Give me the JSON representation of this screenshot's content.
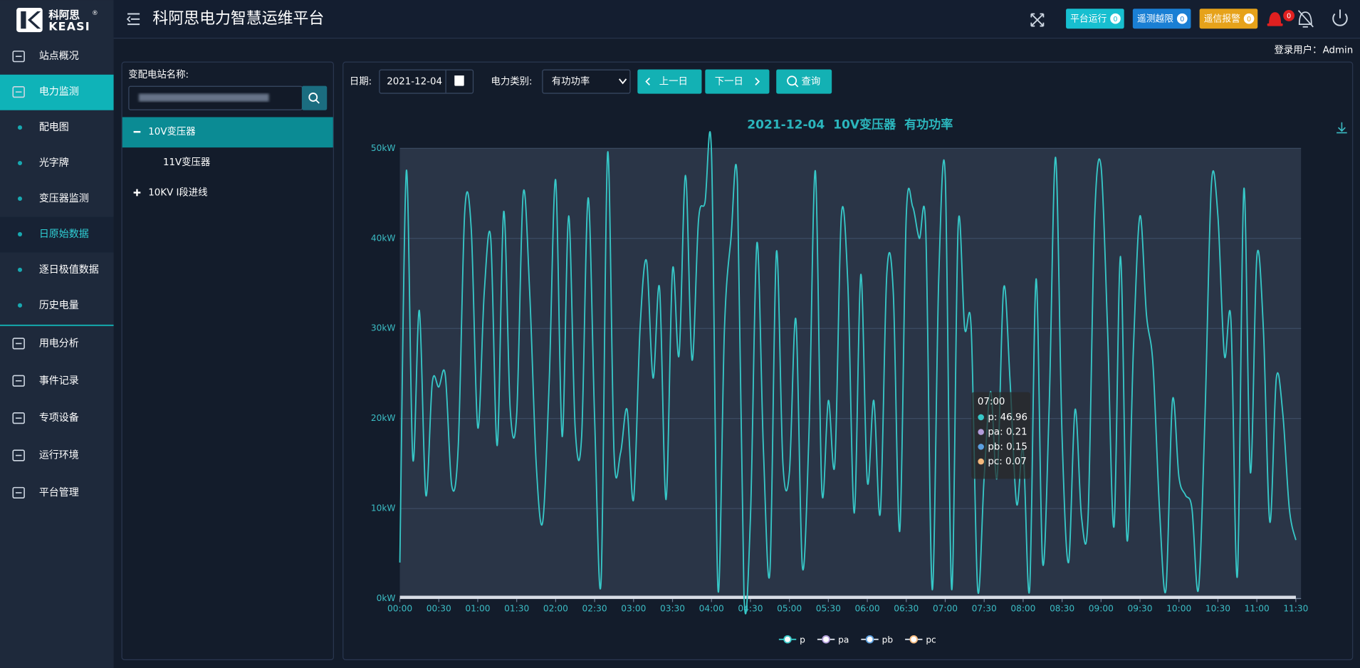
{
  "header": {
    "logo": "科阿思",
    "logo_mark": "®",
    "logo_en": "KEASI",
    "title": "科阿思电力智慧运维平台",
    "badges": [
      {
        "label": "平台运行",
        "count": 0,
        "color": "#17bfd0"
      },
      {
        "label": "遥测越限",
        "count": 0,
        "color": "#1a7fd4"
      },
      {
        "label": "遥信报警",
        "count": 0,
        "color": "#e6a21a"
      }
    ],
    "alarm_count": 0,
    "user_label": "登录用户：",
    "user": "Admin"
  },
  "sidebar": {
    "items": [
      {
        "label": "站点概况"
      },
      {
        "label": "电力监测",
        "active": true,
        "children": [
          {
            "label": "配电图"
          },
          {
            "label": "光字牌"
          },
          {
            "label": "变压器监测"
          },
          {
            "label": "日原始数据",
            "active": true
          },
          {
            "label": "逐日极值数据"
          },
          {
            "label": "历史电量"
          }
        ]
      },
      {
        "label": "用电分析"
      },
      {
        "label": "事件记录"
      },
      {
        "label": "专项设备"
      },
      {
        "label": "运行环境"
      },
      {
        "label": "平台管理"
      }
    ]
  },
  "station_panel": {
    "label": "变配电站名称:",
    "tree": [
      {
        "label": "10V变压器",
        "expanded": true,
        "active": true,
        "children": [
          {
            "label": "11V变压器"
          }
        ]
      },
      {
        "label": "10KV Ⅰ段进线",
        "expanded": false
      }
    ]
  },
  "controls": {
    "date_label": "日期:",
    "date": "2021-12-04",
    "type_label": "电力类别:",
    "type": "有功功率",
    "prev": "上一日",
    "next": "下一日",
    "query": "查询"
  },
  "tooltip": {
    "time": "07:00",
    "items": [
      "p: 46.96",
      "pa: 0.21",
      "pb: 0.15",
      "pc: 0.07"
    ]
  },
  "chart_data": {
    "type": "line",
    "title": "2021-12-04  10V变压器  有功功率",
    "categories": [
      "00:00",
      "00:05",
      "00:10",
      "00:15",
      "00:20",
      "00:25",
      "00:30",
      "00:35",
      "00:40",
      "00:45",
      "00:50",
      "00:55",
      "01:00",
      "01:05",
      "01:10",
      "01:15",
      "01:20",
      "01:25",
      "01:30",
      "01:35",
      "01:40",
      "01:45",
      "01:50",
      "01:55",
      "02:00",
      "02:05",
      "02:10",
      "02:15",
      "02:20",
      "02:25",
      "02:30",
      "02:35",
      "02:40",
      "02:45",
      "02:50",
      "02:55",
      "03:00",
      "03:05",
      "03:10",
      "03:15",
      "03:20",
      "03:25",
      "03:30",
      "03:35",
      "03:40",
      "03:45",
      "03:50",
      "03:55",
      "04:00",
      "04:05",
      "04:10",
      "04:15",
      "04:20",
      "04:25",
      "04:30",
      "04:35",
      "04:40",
      "04:45",
      "04:50",
      "04:55",
      "05:00",
      "05:05",
      "05:10",
      "05:15",
      "05:20",
      "05:25",
      "05:30",
      "05:35",
      "05:40",
      "05:45",
      "05:50",
      "05:55",
      "06:00",
      "06:05",
      "06:10",
      "06:15",
      "06:20",
      "06:25",
      "06:30",
      "06:35",
      "06:40",
      "06:45",
      "06:50",
      "06:55",
      "07:00",
      "07:05",
      "07:10",
      "07:15",
      "07:20",
      "07:25",
      "07:30",
      "07:35",
      "07:40",
      "07:45",
      "07:50",
      "07:55",
      "08:00",
      "08:05",
      "08:10",
      "08:15",
      "08:20",
      "08:25",
      "08:30",
      "08:35",
      "08:40",
      "08:45",
      "08:50",
      "08:55",
      "09:00",
      "09:05",
      "09:10",
      "09:15",
      "09:20",
      "09:25",
      "09:30",
      "09:35",
      "09:40",
      "09:45",
      "09:50",
      "09:55",
      "10:00",
      "10:05",
      "10:10",
      "10:15",
      "10:20",
      "10:25",
      "10:30",
      "10:35",
      "10:40",
      "10:45",
      "10:50",
      "10:55",
      "11:00",
      "11:05",
      "11:10",
      "11:15",
      "11:20",
      "11:25",
      "11:30"
    ],
    "series": [
      {
        "name": "p",
        "color": "#37c8c8",
        "values": [
          4,
          47.5,
          15.5,
          32,
          11.5,
          24,
          23.5,
          24.8,
          12.5,
          17,
          43,
          41,
          19,
          34,
          40,
          17,
          43,
          21,
          20.5,
          45,
          34,
          15,
          8.5,
          24,
          46.5,
          18,
          42.5,
          19,
          18,
          44.5,
          20,
          2,
          49.5,
          16,
          16.2,
          21,
          11,
          30,
          37.5,
          24.5,
          34.5,
          11,
          36.5,
          27,
          47,
          26.5,
          42,
          44,
          49.5,
          1,
          30,
          40,
          46,
          0.5,
          9,
          39.5,
          16.5,
          3,
          38.5,
          15,
          14,
          31,
          3.5,
          18,
          47.5,
          12,
          22,
          15,
          42.5,
          35,
          9.5,
          36,
          13,
          22,
          9.5,
          36,
          34,
          7.5,
          42.5,
          43.5,
          40,
          41,
          1,
          35.5,
          46.96,
          1,
          41.5,
          30,
          30,
          1,
          13.5,
          23,
          13.5,
          34.5,
          24,
          10.5,
          16.5,
          1,
          35.5,
          4,
          21,
          49,
          18,
          4,
          21,
          9,
          9,
          42,
          48,
          30,
          8,
          38,
          6.5,
          28,
          42.5,
          31.5,
          26,
          10,
          1,
          22,
          13.5,
          11.5,
          10,
          1,
          20,
          46,
          42.5,
          27,
          31,
          2.5,
          45.5,
          14,
          38,
          30,
          8.5,
          24.5,
          20.5,
          10,
          6.5
        ]
      },
      {
        "name": "pa",
        "color": "#b39ddb",
        "values": [
          0.21,
          0.21,
          0.21,
          0.21,
          0.21,
          0.21,
          0.21,
          0.21,
          0.21,
          0.21,
          0.21,
          0.21,
          0.21,
          0.21,
          0.21,
          0.21,
          0.21,
          0.21,
          0.21,
          0.21,
          0.21,
          0.21,
          0.21,
          0.21,
          0.21,
          0.21,
          0.21,
          0.21,
          0.21,
          0.21,
          0.21,
          0.21,
          0.21,
          0.21,
          0.21,
          0.21,
          0.21,
          0.21,
          0.21,
          0.21,
          0.21,
          0.21,
          0.21,
          0.21,
          0.21,
          0.21,
          0.21,
          0.21,
          0.21,
          0.21,
          0.21,
          0.21,
          0.21,
          0.21,
          0.21,
          0.21,
          0.21,
          0.21,
          0.21,
          0.21,
          0.21,
          0.21,
          0.21,
          0.21,
          0.21,
          0.21,
          0.21,
          0.21,
          0.21,
          0.21,
          0.21,
          0.21,
          0.21,
          0.21,
          0.21,
          0.21,
          0.21,
          0.21,
          0.21,
          0.21,
          0.21,
          0.21,
          0.21,
          0.21,
          0.21,
          0.21,
          0.21,
          0.21,
          0.21,
          0.21,
          0.21,
          0.21,
          0.21,
          0.21,
          0.21,
          0.21,
          0.21,
          0.21,
          0.21,
          0.21,
          0.21,
          0.21,
          0.21,
          0.21,
          0.21,
          0.21,
          0.21,
          0.21,
          0.21,
          0.21,
          0.21,
          0.21,
          0.21,
          0.21,
          0.21,
          0.21,
          0.21,
          0.21,
          0.21,
          0.21,
          0.21,
          0.21,
          0.21,
          0.21,
          0.21,
          0.21,
          0.21,
          0.21,
          0.21,
          0.21,
          0.21,
          0.21,
          0.21,
          0.21,
          0.21,
          0.21,
          0.21,
          0.21,
          0.21
        ]
      },
      {
        "name": "pb",
        "color": "#5ba0e0",
        "values": [
          0.15,
          0.15,
          0.15,
          0.15,
          0.15,
          0.15,
          0.15,
          0.15,
          0.15,
          0.15,
          0.15,
          0.15,
          0.15,
          0.15,
          0.15,
          0.15,
          0.15,
          0.15,
          0.15,
          0.15,
          0.15,
          0.15,
          0.15,
          0.15,
          0.15,
          0.15,
          0.15,
          0.15,
          0.15,
          0.15,
          0.15,
          0.15,
          0.15,
          0.15,
          0.15,
          0.15,
          0.15,
          0.15,
          0.15,
          0.15,
          0.15,
          0.15,
          0.15,
          0.15,
          0.15,
          0.15,
          0.15,
          0.15,
          0.15,
          0.15,
          0.15,
          0.15,
          0.15,
          0.15,
          0.15,
          0.15,
          0.15,
          0.15,
          0.15,
          0.15,
          0.15,
          0.15,
          0.15,
          0.15,
          0.15,
          0.15,
          0.15,
          0.15,
          0.15,
          0.15,
          0.15,
          0.15,
          0.15,
          0.15,
          0.15,
          0.15,
          0.15,
          0.15,
          0.15,
          0.15,
          0.15,
          0.15,
          0.15,
          0.15,
          0.15,
          0.15,
          0.15,
          0.15,
          0.15,
          0.15,
          0.15,
          0.15,
          0.15,
          0.15,
          0.15,
          0.15,
          0.15,
          0.15,
          0.15,
          0.15,
          0.15,
          0.15,
          0.15,
          0.15,
          0.15,
          0.15,
          0.15,
          0.15,
          0.15,
          0.15,
          0.15,
          0.15,
          0.15,
          0.15,
          0.15,
          0.15,
          0.15,
          0.15,
          0.15,
          0.15,
          0.15,
          0.15,
          0.15,
          0.15,
          0.15,
          0.15,
          0.15,
          0.15,
          0.15,
          0.15,
          0.15,
          0.15,
          0.15,
          0.15,
          0.15,
          0.15,
          0.15,
          0.15,
          0.15
        ]
      },
      {
        "name": "pc",
        "color": "#f5b97c",
        "values": [
          0.07,
          0.07,
          0.07,
          0.07,
          0.07,
          0.07,
          0.07,
          0.07,
          0.07,
          0.07,
          0.07,
          0.07,
          0.07,
          0.07,
          0.07,
          0.07,
          0.07,
          0.07,
          0.07,
          0.07,
          0.07,
          0.07,
          0.07,
          0.07,
          0.07,
          0.07,
          0.07,
          0.07,
          0.07,
          0.07,
          0.07,
          0.07,
          0.07,
          0.07,
          0.07,
          0.07,
          0.07,
          0.07,
          0.07,
          0.07,
          0.07,
          0.07,
          0.07,
          0.07,
          0.07,
          0.07,
          0.07,
          0.07,
          0.07,
          0.07,
          0.07,
          0.07,
          0.07,
          0.07,
          0.07,
          0.07,
          0.07,
          0.07,
          0.07,
          0.07,
          0.07,
          0.07,
          0.07,
          0.07,
          0.07,
          0.07,
          0.07,
          0.07,
          0.07,
          0.07,
          0.07,
          0.07,
          0.07,
          0.07,
          0.07,
          0.07,
          0.07,
          0.07,
          0.07,
          0.07,
          0.07,
          0.07,
          0.07,
          0.07,
          0.07,
          0.07,
          0.07,
          0.07,
          0.07,
          0.07,
          0.07,
          0.07,
          0.07,
          0.07,
          0.07,
          0.07,
          0.07,
          0.07,
          0.07,
          0.07,
          0.07,
          0.07,
          0.07,
          0.07,
          0.07,
          0.07,
          0.07,
          0.07,
          0.07,
          0.07,
          0.07,
          0.07,
          0.07,
          0.07,
          0.07,
          0.07,
          0.07,
          0.07,
          0.07,
          0.07,
          0.07,
          0.07,
          0.07,
          0.07,
          0.07,
          0.07,
          0.07,
          0.07,
          0.07,
          0.07,
          0.07,
          0.07,
          0.07,
          0.07,
          0.07,
          0.07,
          0.07,
          0.07,
          0.07
        ]
      }
    ],
    "ylim": [
      0,
      50
    ],
    "yticks": [
      {
        "value": 0,
        "label": "0kW"
      },
      {
        "value": 10,
        "label": "10kW"
      },
      {
        "value": 20,
        "label": "20kW"
      },
      {
        "value": 30,
        "label": "30kW"
      },
      {
        "value": 40,
        "label": "40kW"
      },
      {
        "value": 50,
        "label": "50kW"
      }
    ],
    "xticks": [
      "00:00",
      "00:30",
      "01:00",
      "01:30",
      "02:00",
      "02:30",
      "03:00",
      "03:30",
      "04:00",
      "04:30",
      "05:00",
      "05:30",
      "06:00",
      "06:30",
      "07:00",
      "07:30",
      "08:00",
      "08:30",
      "09:00",
      "09:30",
      "10:00",
      "10:30",
      "11:00",
      "11:30"
    ],
    "grid": true,
    "legend": "bottom"
  }
}
